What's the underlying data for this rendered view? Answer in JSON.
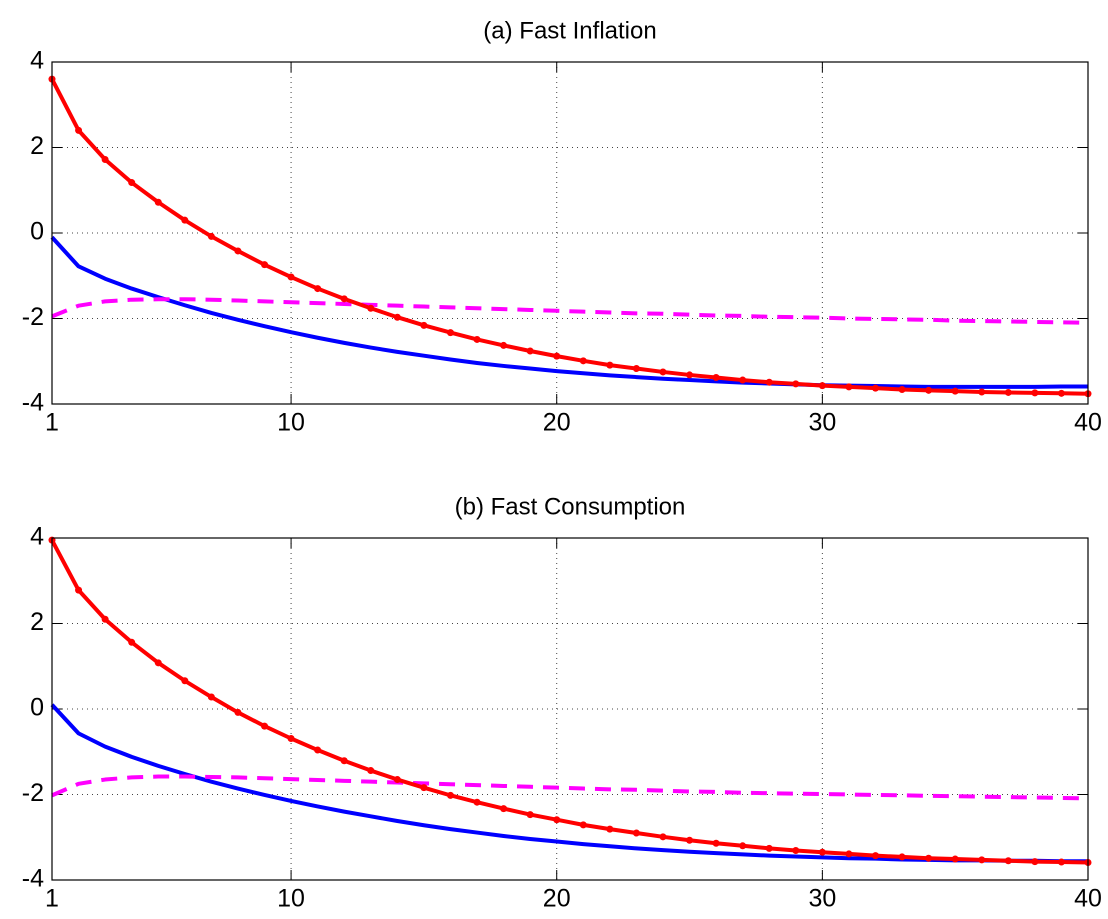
{
  "chart_data": [
    {
      "type": "line",
      "title": "(a) Fast Inflation",
      "x": [
        1,
        2,
        3,
        4,
        5,
        6,
        7,
        8,
        9,
        10,
        11,
        12,
        13,
        14,
        15,
        16,
        17,
        18,
        19,
        20,
        21,
        22,
        23,
        24,
        25,
        26,
        27,
        28,
        29,
        30,
        31,
        32,
        33,
        34,
        35,
        36,
        37,
        38,
        39,
        40
      ],
      "xlim": [
        1,
        40
      ],
      "xticks": [
        1,
        10,
        20,
        30,
        40
      ],
      "ylim": [
        -4,
        4
      ],
      "yticks": [
        -4,
        -2,
        0,
        2,
        4
      ],
      "grid": true,
      "series": [
        {
          "color": "#0000ff",
          "line": "solid",
          "values": [
            -0.1,
            -0.78,
            -1.07,
            -1.3,
            -1.5,
            -1.69,
            -1.87,
            -2.03,
            -2.18,
            -2.32,
            -2.45,
            -2.57,
            -2.68,
            -2.78,
            -2.87,
            -2.96,
            -3.04,
            -3.11,
            -3.17,
            -3.23,
            -3.28,
            -3.33,
            -3.37,
            -3.41,
            -3.44,
            -3.47,
            -3.5,
            -3.52,
            -3.54,
            -3.56,
            -3.57,
            -3.58,
            -3.59,
            -3.6,
            -3.6,
            -3.6,
            -3.6,
            -3.6,
            -3.59,
            -3.59
          ]
        },
        {
          "color": "#ff00ff",
          "line": "dashed",
          "values": [
            -1.95,
            -1.7,
            -1.6,
            -1.56,
            -1.55,
            -1.55,
            -1.56,
            -1.58,
            -1.6,
            -1.62,
            -1.64,
            -1.66,
            -1.68,
            -1.7,
            -1.72,
            -1.74,
            -1.76,
            -1.78,
            -1.8,
            -1.82,
            -1.84,
            -1.86,
            -1.88,
            -1.89,
            -1.91,
            -1.93,
            -1.94,
            -1.96,
            -1.97,
            -1.98,
            -2.0,
            -2.01,
            -2.02,
            -2.03,
            -2.05,
            -2.06,
            -2.07,
            -2.08,
            -2.09,
            -2.1
          ]
        },
        {
          "color": "#ff0000",
          "line": "solid",
          "marker": "dot",
          "values": [
            3.6,
            2.4,
            1.72,
            1.18,
            0.72,
            0.3,
            -0.08,
            -0.42,
            -0.74,
            -1.03,
            -1.3,
            -1.54,
            -1.76,
            -1.97,
            -2.16,
            -2.33,
            -2.49,
            -2.63,
            -2.76,
            -2.88,
            -2.99,
            -3.09,
            -3.17,
            -3.25,
            -3.32,
            -3.38,
            -3.44,
            -3.49,
            -3.53,
            -3.57,
            -3.6,
            -3.63,
            -3.66,
            -3.68,
            -3.7,
            -3.72,
            -3.73,
            -3.74,
            -3.75,
            -3.76
          ]
        }
      ]
    },
    {
      "type": "line",
      "title": "(b) Fast Consumption",
      "x": [
        1,
        2,
        3,
        4,
        5,
        6,
        7,
        8,
        9,
        10,
        11,
        12,
        13,
        14,
        15,
        16,
        17,
        18,
        19,
        20,
        21,
        22,
        23,
        24,
        25,
        26,
        27,
        28,
        29,
        30,
        31,
        32,
        33,
        34,
        35,
        36,
        37,
        38,
        39,
        40
      ],
      "xlim": [
        1,
        40
      ],
      "xticks": [
        1,
        10,
        20,
        30,
        40
      ],
      "ylim": [
        -4,
        4
      ],
      "yticks": [
        -4,
        -2,
        0,
        2,
        4
      ],
      "grid": true,
      "series": [
        {
          "color": "#0000ff",
          "line": "solid",
          "values": [
            0.1,
            -0.57,
            -0.88,
            -1.12,
            -1.33,
            -1.52,
            -1.7,
            -1.86,
            -2.01,
            -2.15,
            -2.28,
            -2.4,
            -2.51,
            -2.62,
            -2.72,
            -2.81,
            -2.89,
            -2.97,
            -3.04,
            -3.1,
            -3.16,
            -3.21,
            -3.26,
            -3.3,
            -3.34,
            -3.37,
            -3.4,
            -3.43,
            -3.45,
            -3.47,
            -3.49,
            -3.5,
            -3.52,
            -3.53,
            -3.54,
            -3.54,
            -3.55,
            -3.55,
            -3.56,
            -3.56
          ]
        },
        {
          "color": "#ff00ff",
          "line": "dashed",
          "values": [
            -2.02,
            -1.75,
            -1.65,
            -1.6,
            -1.58,
            -1.58,
            -1.59,
            -1.6,
            -1.62,
            -1.64,
            -1.66,
            -1.68,
            -1.7,
            -1.72,
            -1.74,
            -1.76,
            -1.78,
            -1.8,
            -1.82,
            -1.84,
            -1.86,
            -1.88,
            -1.89,
            -1.91,
            -1.93,
            -1.94,
            -1.96,
            -1.97,
            -1.98,
            -1.99,
            -2.0,
            -2.01,
            -2.02,
            -2.03,
            -2.04,
            -2.05,
            -2.06,
            -2.07,
            -2.08,
            -2.09
          ]
        },
        {
          "color": "#ff0000",
          "line": "solid",
          "marker": "dot",
          "values": [
            3.95,
            2.78,
            2.1,
            1.56,
            1.08,
            0.66,
            0.28,
            -0.08,
            -0.4,
            -0.69,
            -0.96,
            -1.21,
            -1.44,
            -1.65,
            -1.84,
            -2.02,
            -2.18,
            -2.33,
            -2.47,
            -2.59,
            -2.71,
            -2.81,
            -2.9,
            -2.99,
            -3.07,
            -3.14,
            -3.2,
            -3.26,
            -3.31,
            -3.35,
            -3.39,
            -3.43,
            -3.46,
            -3.49,
            -3.51,
            -3.53,
            -3.55,
            -3.57,
            -3.58,
            -3.59
          ]
        }
      ]
    }
  ]
}
